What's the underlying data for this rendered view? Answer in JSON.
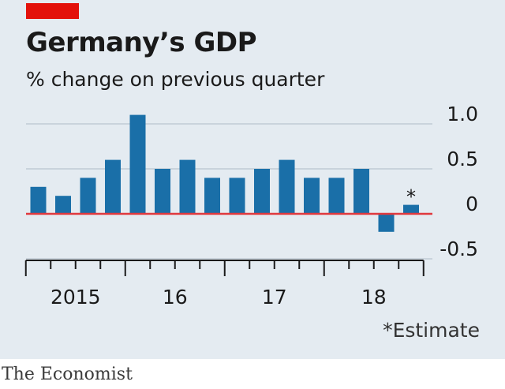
{
  "header": {
    "title": "Germany’s GDP",
    "subtitle": "% change on previous quarter"
  },
  "footnote": "*Estimate",
  "source": "The Economist",
  "colors": {
    "bar": "#1a6fa8",
    "zero_line": "#e0393e",
    "grid": "#c9d3dc",
    "axis": "#1a1a1a",
    "text": "#1a1a1a",
    "red_tag": "#e3120b",
    "panel": "#e4ebf1"
  },
  "chart_data": {
    "type": "bar",
    "title": "Germany’s GDP",
    "subtitle": "% change on previous quarter",
    "categories": [
      "2015 Q1",
      "2015 Q2",
      "2015 Q3",
      "2015 Q4",
      "2016 Q1",
      "2016 Q2",
      "2016 Q3",
      "2016 Q4",
      "2017 Q1",
      "2017 Q2",
      "2017 Q3",
      "2017 Q4",
      "2018 Q1",
      "2018 Q2",
      "2018 Q3",
      "2018 Q4"
    ],
    "values": [
      0.3,
      0.2,
      0.4,
      0.6,
      1.1,
      0.5,
      0.6,
      0.4,
      0.4,
      0.5,
      0.6,
      0.4,
      0.4,
      0.5,
      -0.2,
      0.1
    ],
    "bar_annotations": [
      {
        "index": 15,
        "text": "*"
      }
    ],
    "ylim": [
      -0.5,
      1.0
    ],
    "yticks": [
      1.0,
      0.5,
      0,
      -0.5
    ],
    "ytick_labels": [
      "1.0",
      "0.5",
      "0",
      "-0.5"
    ],
    "xtick_labels": [
      {
        "label": "2015",
        "year_start_index": 0
      },
      {
        "label": "16",
        "year_start_index": 4
      },
      {
        "label": "17",
        "year_start_index": 8
      },
      {
        "label": "18",
        "year_start_index": 12
      }
    ],
    "grid": true,
    "legend": "none"
  }
}
